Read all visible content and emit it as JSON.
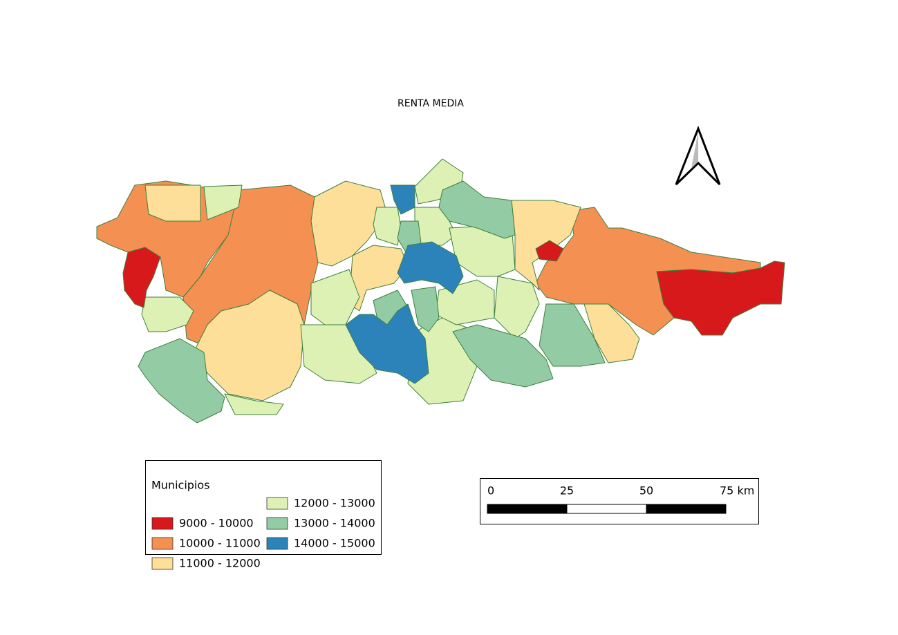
{
  "title": "RENTA MEDIA",
  "legend": {
    "title": "Municipios",
    "items": [
      {
        "label": "9000 - 10000",
        "color": "#d7191c"
      },
      {
        "label": "10000 - 11000",
        "color": "#f59053"
      },
      {
        "label": "11000 - 12000",
        "color": "#fddf99"
      },
      {
        "label": "12000 - 13000",
        "color": "#def1b4"
      },
      {
        "label": "13000 - 14000",
        "color": "#93cba4"
      },
      {
        "label": "14000 - 15000",
        "color": "#2b83ba"
      }
    ]
  },
  "scale_bar": {
    "labels": [
      "0",
      "25",
      "50",
      "75 km"
    ]
  }
}
